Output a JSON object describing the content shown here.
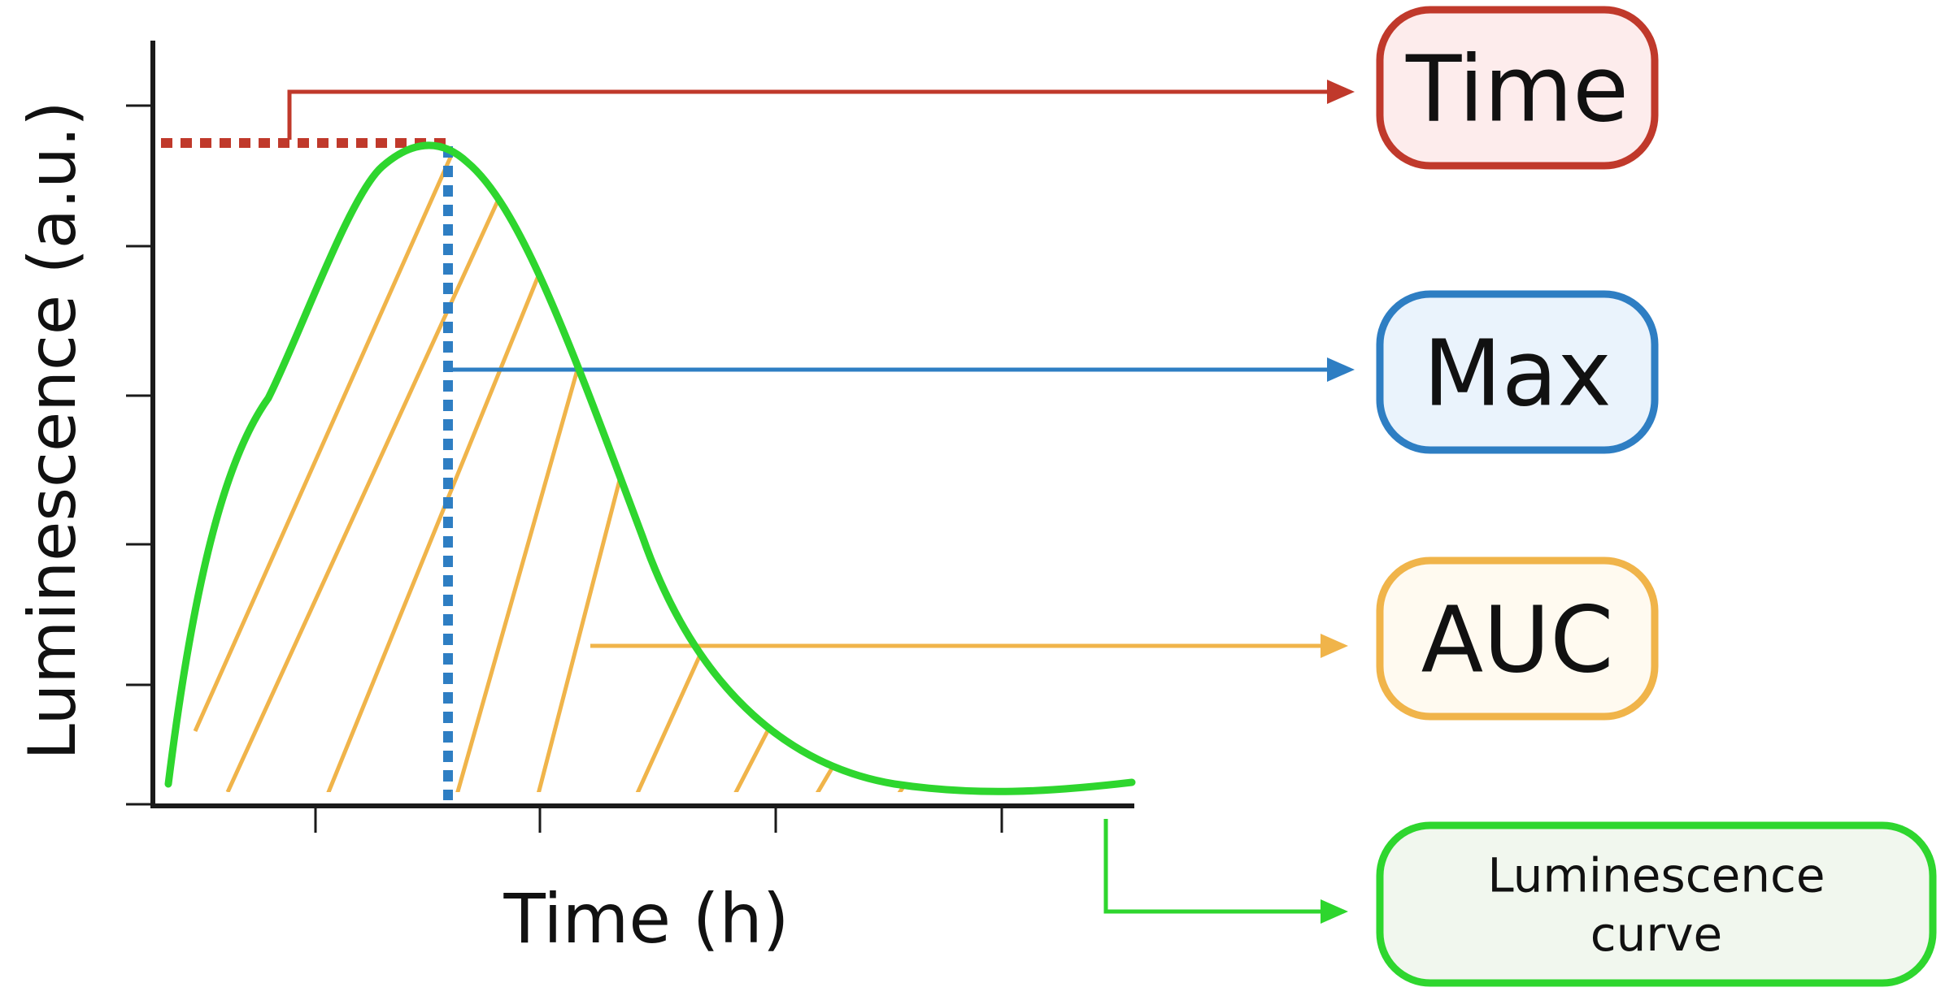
{
  "axes": {
    "x_label": "Time (h)",
    "y_label": "Luminescence (a.u.)"
  },
  "legend": [
    {
      "key": "time",
      "lines": [
        "Time"
      ],
      "color": "#c0392b",
      "fill": "#fdecec"
    },
    {
      "key": "max",
      "lines": [
        "Max"
      ],
      "color": "#2e7ec3",
      "fill": "#eaf3fc"
    },
    {
      "key": "auc",
      "lines": [
        "AUC"
      ],
      "color": "#f0b44a",
      "fill": "#fffaf0"
    },
    {
      "key": "curve",
      "lines": [
        "Luminescence",
        "curve"
      ],
      "color": "#2ed62e",
      "fill": "#f1f7ee"
    }
  ],
  "colors": {
    "axis": "#1a1a1a",
    "curve": "#2ed62e",
    "time_marker": "#c0392b",
    "max_marker": "#2e7ec3",
    "auc_hatch": "#f0b44a"
  }
}
